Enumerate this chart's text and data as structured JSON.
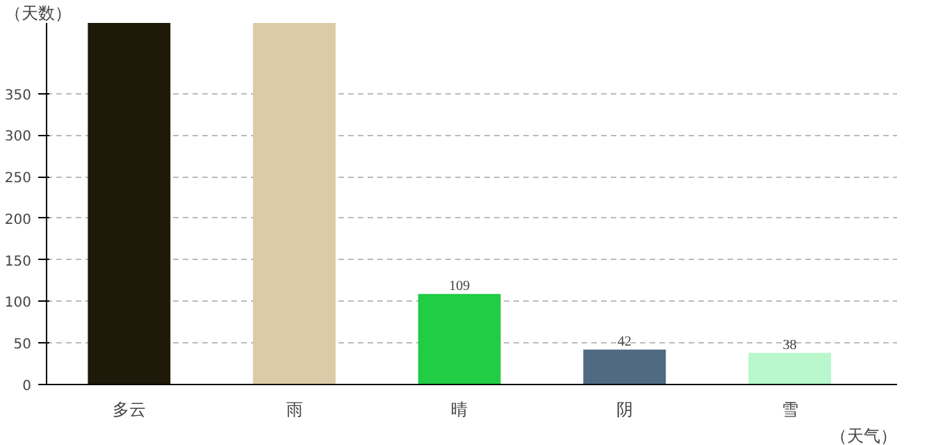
{
  "chart_data": {
    "type": "bar",
    "xlabel": "（天气）",
    "ylabel": "（天数）",
    "categories": [
      "多云",
      "雨",
      "晴",
      "阴",
      "雪"
    ],
    "values": [
      435,
      435,
      109,
      42,
      38
    ],
    "value_labels": [
      null,
      null,
      "109",
      "42",
      "38"
    ],
    "colors": [
      "#1e1909",
      "#ddcaa6",
      "#22cc44",
      "#506a84",
      "#b8f8cc"
    ],
    "ylim": [
      0,
      435
    ],
    "yticks": [
      0,
      50,
      100,
      150,
      200,
      250,
      300,
      350
    ],
    "grid": "y"
  }
}
